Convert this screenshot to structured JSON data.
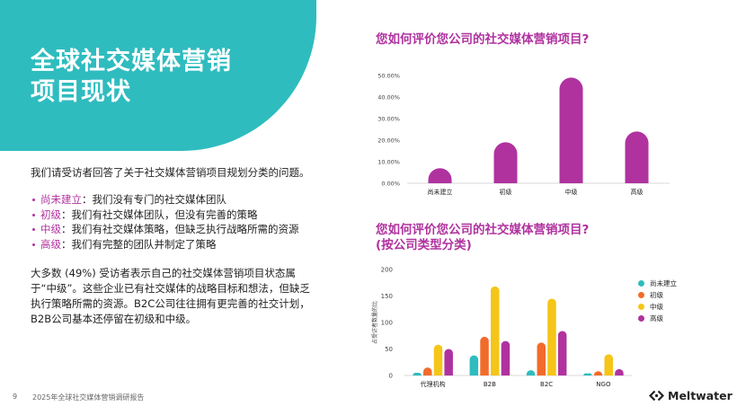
{
  "hero": {
    "title": "全球社交媒体营销\n项目现状"
  },
  "left": {
    "intro": "我们请受访者回答了关于社交媒体营销项目规划分类的问题。",
    "levels": [
      {
        "term": "尚未建立",
        "desc": "：我们没有专门的社交媒体团队"
      },
      {
        "term": "初级",
        "desc": "：我们有社交媒体团队，但没有完善的策略"
      },
      {
        "term": "中级",
        "desc": "：我们有社交媒体策略，但缺乏执行战略所需的资源"
      },
      {
        "term": "高级",
        "desc": "：我们有完整的团队并制定了策略"
      }
    ],
    "summary": "大多数 (49%) 受访者表示自己的社交媒体营销项目状态属于“中级”。这些企业已有社交媒体的战略目标和想法，但缺乏执行策略所需的资源。B2C公司往往拥有更完善的社交计划，B2B公司基本还停留在初级和中级。"
  },
  "footer": {
    "page": "9",
    "title": "2025年全球社交媒体营销调研报告",
    "logo": "Meltwater"
  },
  "chart1_title": "您如何评价您公司的社交媒体营销项目?",
  "chart2_title": {
    "line1": "您如何评价您公司的社交媒体营销项目?",
    "line2": "(按公司类型分类)"
  },
  "colors": {
    "teal": "#2fbcbf",
    "purple": "#b0329f",
    "orange": "#f26b2b",
    "yellow": "#f5c518",
    "text": "#222222"
  },
  "chart_data": [
    {
      "type": "bar",
      "categories": [
        "尚未建立",
        "初级",
        "中级",
        "高级"
      ],
      "values": [
        7,
        19,
        49,
        24
      ],
      "ylim": [
        0,
        50
      ],
      "yticks": [
        0,
        10,
        20,
        30,
        40,
        50
      ],
      "ytick_labels": [
        "0.00%",
        "10.00%",
        "20.00%",
        "30.00%",
        "40.00%",
        "50.00%"
      ],
      "color": "#b0329f",
      "grid": false
    },
    {
      "type": "bar",
      "categories": [
        "代理机构",
        "B2B",
        "B2C",
        "NGO"
      ],
      "series": [
        {
          "name": "尚未建立",
          "color": "#2fbcbf",
          "values": [
            5,
            38,
            10,
            4
          ]
        },
        {
          "name": "初级",
          "color": "#f26b2b",
          "values": [
            15,
            73,
            62,
            8
          ]
        },
        {
          "name": "中级",
          "color": "#f5c518",
          "values": [
            58,
            168,
            145,
            40
          ]
        },
        {
          "name": "高级",
          "color": "#b0329f",
          "values": [
            50,
            65,
            84,
            12
          ]
        }
      ],
      "ylim": [
        0,
        200
      ],
      "yticks": [
        0,
        50,
        100,
        150,
        200
      ],
      "ylabel": "占受访者数量的比",
      "legend": "right",
      "grid": false
    }
  ]
}
